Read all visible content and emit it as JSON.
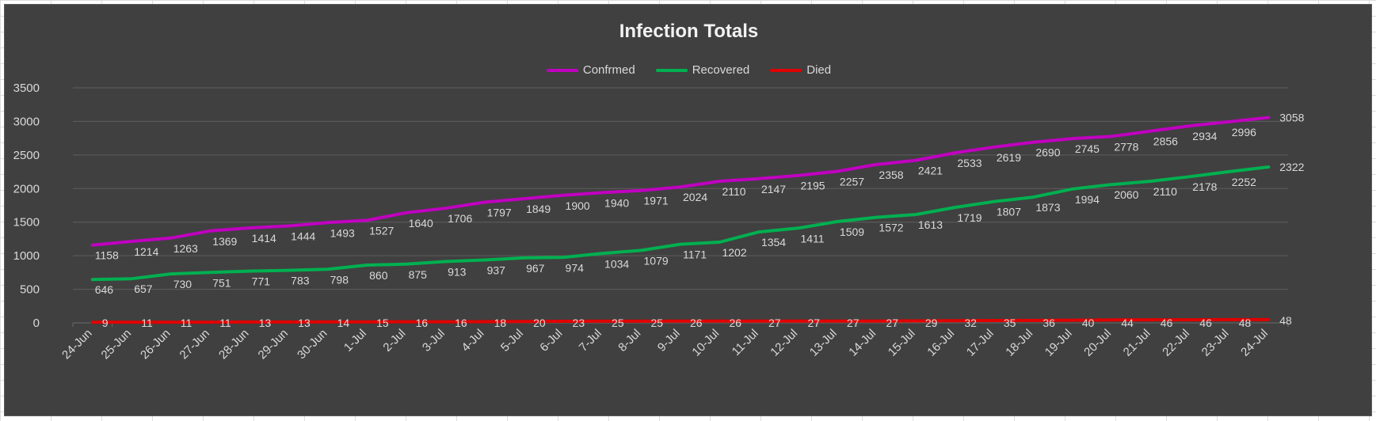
{
  "chart_data": {
    "type": "line",
    "title": "Infection Totals",
    "xlabel": "",
    "ylabel": "",
    "ylim": [
      0,
      3500
    ],
    "yticks": [
      0,
      500,
      1000,
      1500,
      2000,
      2500,
      3000,
      3500
    ],
    "grid": "horizontal",
    "legend_position": "top",
    "categories": [
      "24-Jun",
      "25-Jun",
      "26-Jun",
      "27-Jun",
      "28-Jun",
      "29-Jun",
      "30-Jun",
      "1-Jul",
      "2-Jul",
      "3-Jul",
      "4-Jul",
      "5-Jul",
      "6-Jul",
      "7-Jul",
      "8-Jul",
      "9-Jul",
      "10-Jul",
      "11-Jul",
      "12-Jul",
      "13-Jul",
      "14-Jul",
      "15-Jul",
      "16-Jul",
      "17-Jul",
      "18-Jul",
      "19-Jul",
      "20-Jul",
      "21-Jul",
      "22-Jul",
      "23-Jul",
      "24-Jul"
    ],
    "series": [
      {
        "name": "Confrmed",
        "color": "#c000c0",
        "values": [
          1158,
          1214,
          1263,
          1369,
          1414,
          1444,
          1493,
          1527,
          1640,
          1706,
          1797,
          1849,
          1900,
          1940,
          1971,
          2024,
          2110,
          2147,
          2195,
          2257,
          2358,
          2421,
          2533,
          2619,
          2690,
          2745,
          2778,
          2856,
          2934,
          2996,
          3058
        ]
      },
      {
        "name": "Recovered",
        "color": "#00b050",
        "values": [
          646,
          657,
          730,
          751,
          771,
          783,
          798,
          860,
          875,
          913,
          937,
          967,
          974,
          1034,
          1079,
          1171,
          1202,
          1354,
          1411,
          1509,
          1572,
          1613,
          1719,
          1807,
          1873,
          1994,
          2060,
          2110,
          2178,
          2252,
          2322
        ]
      },
      {
        "name": "Died",
        "color": "#e00000",
        "values": [
          9,
          11,
          11,
          11,
          13,
          13,
          14,
          15,
          16,
          16,
          18,
          20,
          23,
          25,
          25,
          26,
          26,
          27,
          27,
          27,
          27,
          29,
          32,
          35,
          36,
          40,
          44,
          46,
          46,
          48,
          48
        ]
      }
    ]
  }
}
